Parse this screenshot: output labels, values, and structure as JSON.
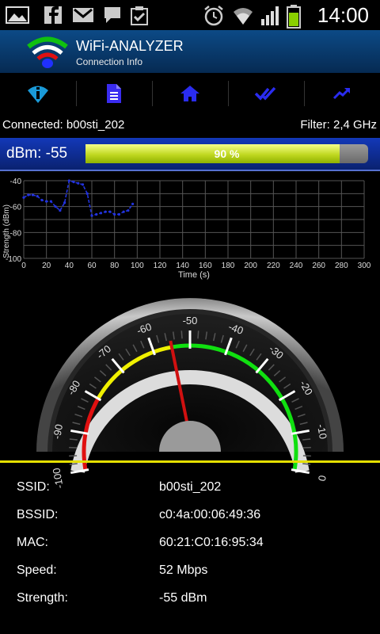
{
  "status_bar": {
    "time": "14:00",
    "icons": [
      "gallery-icon",
      "facebook-icon",
      "gmail-icon",
      "chat-icon",
      "clipboard-check-icon",
      "alarm-icon",
      "wifi-icon",
      "signal-icon",
      "battery-icon"
    ]
  },
  "app": {
    "title": "WiFi-ANALYZER",
    "subtitle": "Connection Info",
    "logo_icon": "wifi-logo-icon"
  },
  "toolbar": {
    "buttons": [
      {
        "icon": "wifi-info-icon"
      },
      {
        "icon": "document-icon"
      },
      {
        "icon": "home-icon"
      },
      {
        "icon": "double-check-icon"
      },
      {
        "icon": "trend-up-icon"
      }
    ],
    "color": "#2233ff"
  },
  "connection": {
    "connected_text": "Connected: b00sti_202",
    "filter_text": "Filter: 2,4 GHz"
  },
  "signal": {
    "dbm_label": "dBm: -55",
    "percent": 90,
    "percent_label": "90 %"
  },
  "chart_data": {
    "type": "line",
    "xlabel": "Time (s)",
    "ylabel": "Strength (dBm)",
    "xlim": [
      0,
      300
    ],
    "ylim": [
      -100,
      -40
    ],
    "x_ticks": [
      0,
      20,
      40,
      60,
      80,
      100,
      120,
      140,
      160,
      180,
      200,
      220,
      240,
      260,
      280,
      300
    ],
    "y_ticks": [
      -40,
      -60,
      -80,
      -100
    ],
    "grid": true,
    "line_color": "#2233dd",
    "series": [
      {
        "x": [
          0,
          4,
          8,
          12,
          16,
          20,
          24,
          28,
          32,
          36,
          40,
          44,
          48,
          52,
          56,
          60,
          64,
          68,
          72,
          76,
          80,
          84,
          88,
          92,
          96
        ],
        "y": [
          -53,
          -51,
          -51,
          -52,
          -55,
          -56,
          -56,
          -60,
          -63,
          -57,
          -40,
          -41,
          -42,
          -43,
          -50,
          -67,
          -66,
          -65,
          -64,
          -64,
          -66,
          -66,
          -64,
          -63,
          -58
        ]
      }
    ]
  },
  "gauge": {
    "value": -55,
    "min": -100,
    "max": 0,
    "tick_labels": [
      "-100",
      "-90",
      "-80",
      "-70",
      "-60",
      "-50",
      "-40",
      "-30",
      "-20",
      "-10",
      "0"
    ],
    "zones": [
      {
        "from": -100,
        "to": -80,
        "color": "#e01010"
      },
      {
        "from": -80,
        "to": -55,
        "color": "#f0f000"
      },
      {
        "from": -55,
        "to": 0,
        "color": "#10e010"
      }
    ]
  },
  "info": {
    "rows": [
      {
        "key": "SSID:",
        "value": "b00sti_202"
      },
      {
        "key": "BSSID:",
        "value": "c0:4a:00:06:49:36"
      },
      {
        "key": "MAC:",
        "value": "60:21:C0:16:95:34"
      },
      {
        "key": "Speed:",
        "value": "52 Mbps"
      },
      {
        "key": "Strength:",
        "value": "-55 dBm"
      }
    ]
  }
}
